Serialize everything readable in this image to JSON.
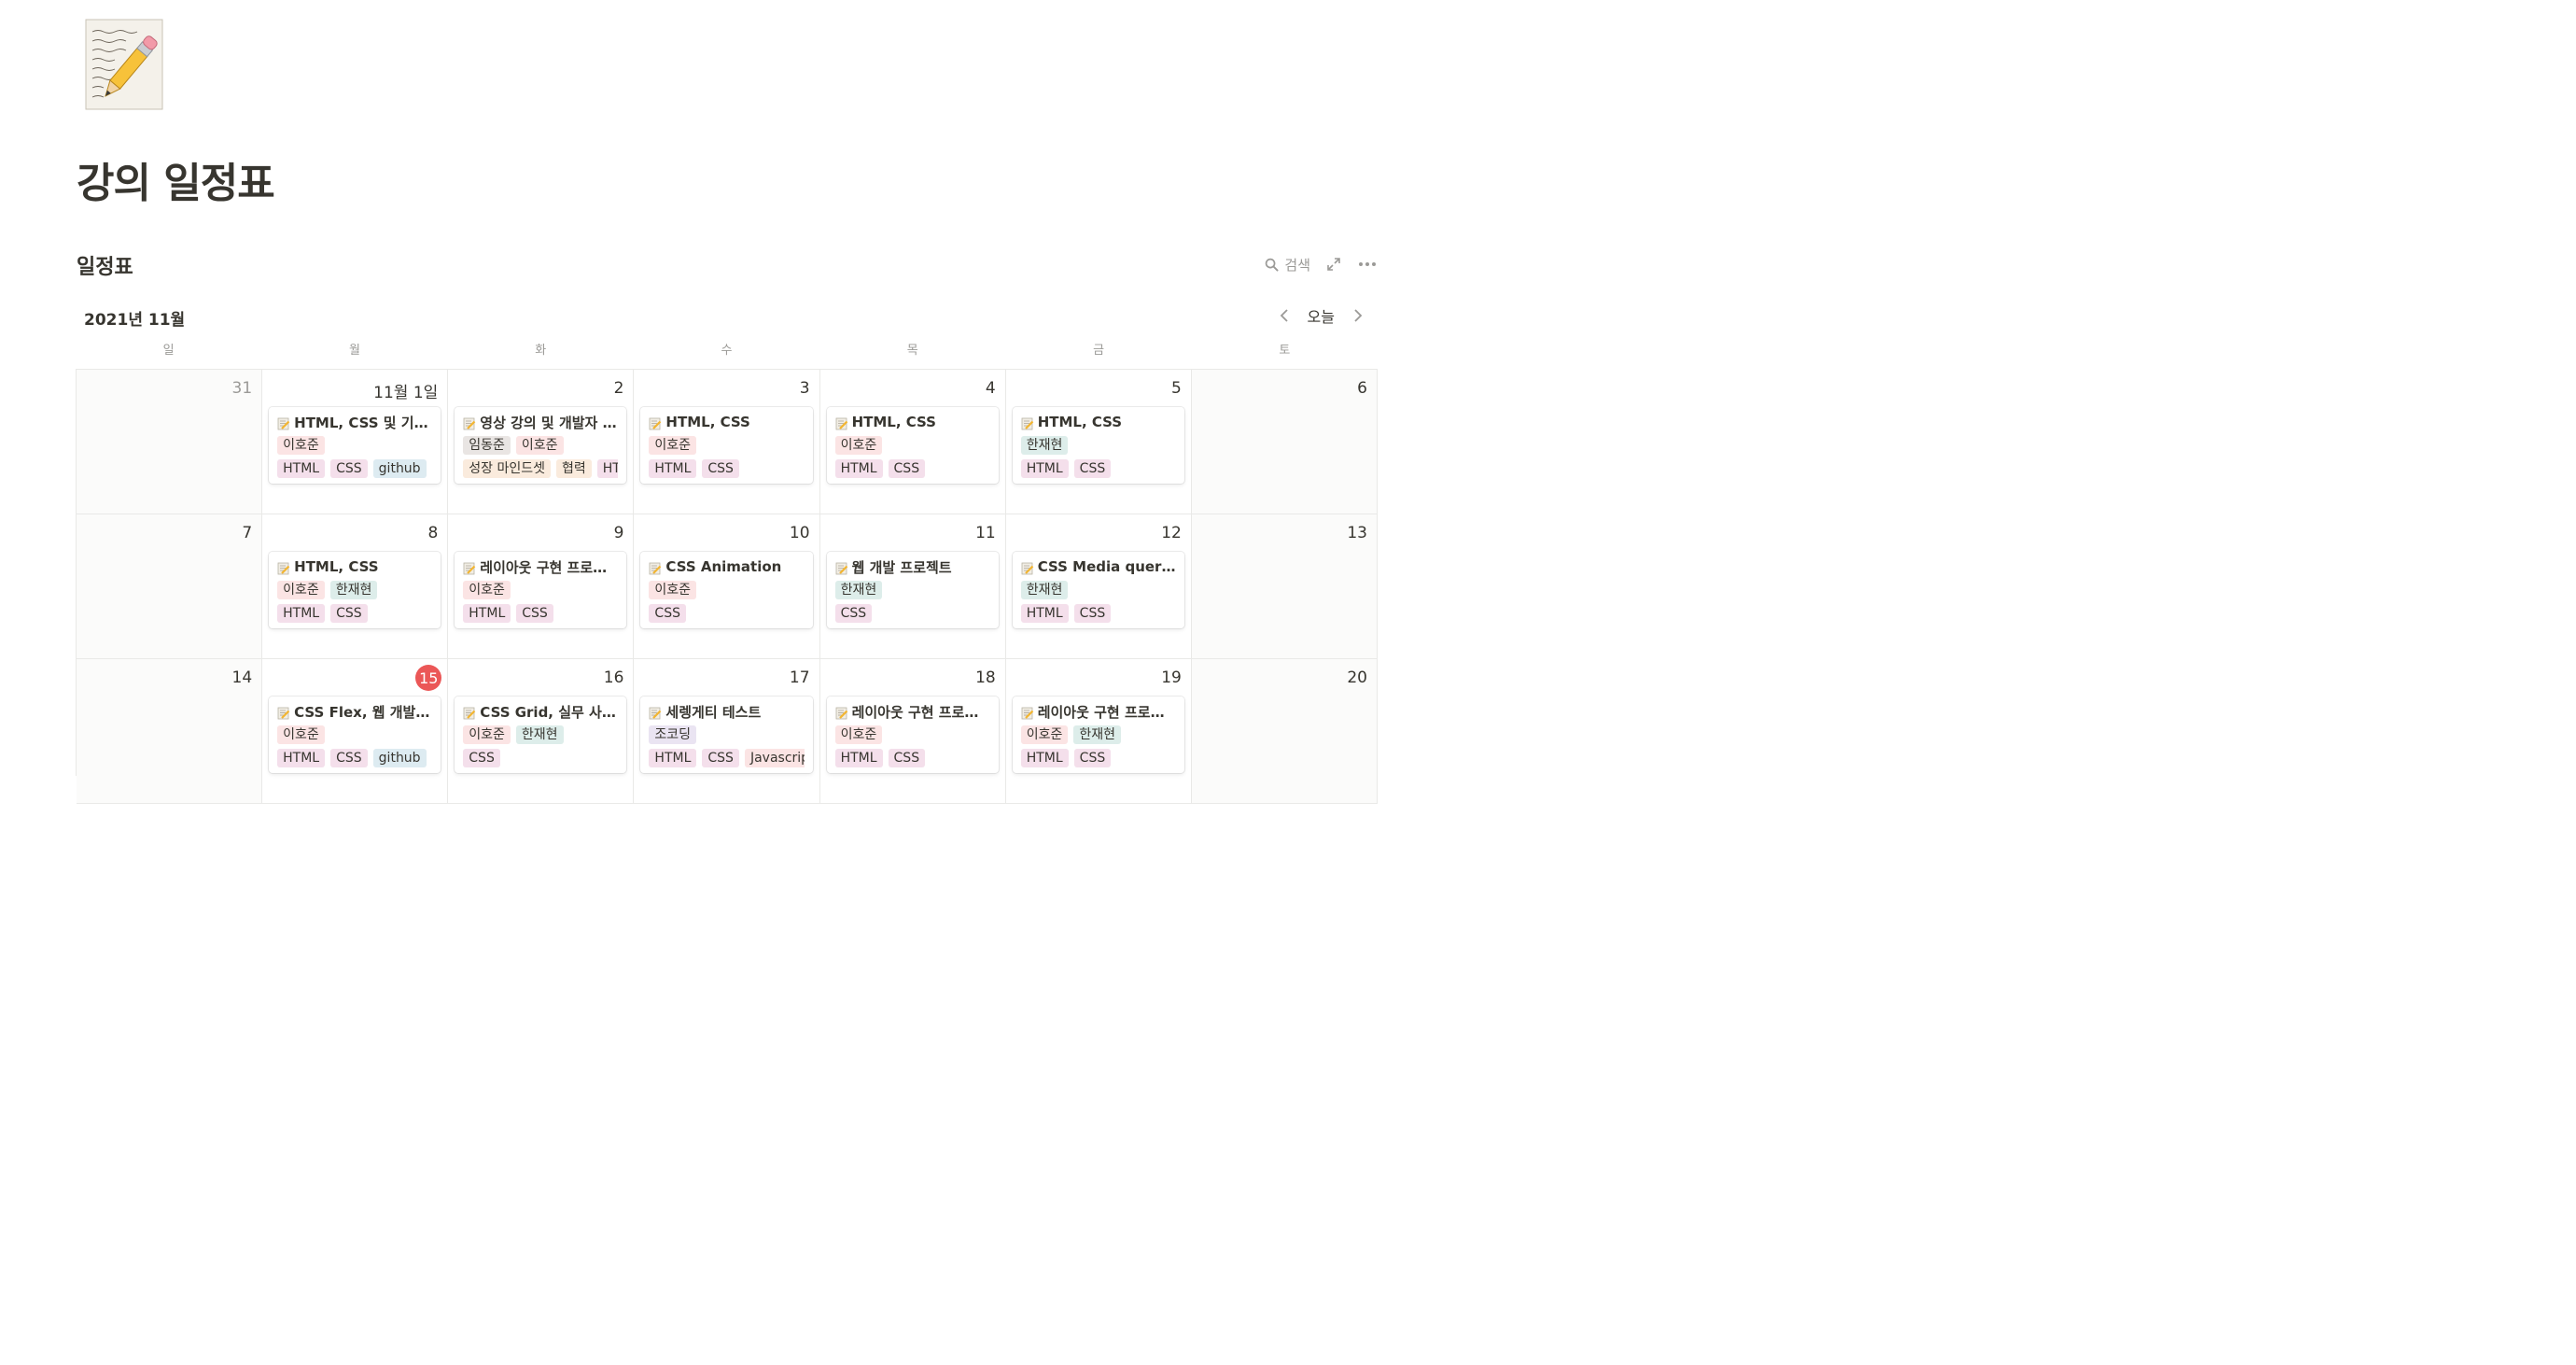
{
  "page": {
    "title": "강의 일정표"
  },
  "database": {
    "title": "일정표",
    "search_label": "검색",
    "icons": {
      "search": "search-icon",
      "expand": "expand-icon",
      "more": "more-icon"
    }
  },
  "calendar": {
    "month_label": "2021년 11월",
    "today_label": "오늘",
    "weekdays": [
      "일",
      "월",
      "화",
      "수",
      "목",
      "금",
      "토"
    ],
    "tag_colors": {
      "pink": "#f4dfeb",
      "red": "#fbe4e4",
      "orange": "#faebdd",
      "green": "#ddedea",
      "blue": "#ddebf1",
      "brown": "#e9e5e3",
      "purple": "#eae4f2"
    },
    "weeks": [
      [
        {
          "day": "31",
          "muted": true,
          "weekend": true
        },
        {
          "day": "11월 1일",
          "event": {
            "title": "HTML, CSS 및 기초 ...",
            "people": [
              {
                "name": "이호준",
                "color": "red"
              }
            ],
            "tags": [
              {
                "name": "HTML",
                "color": "pink"
              },
              {
                "name": "CSS",
                "color": "pink"
              },
              {
                "name": "github",
                "color": "blue"
              }
            ]
          }
        },
        {
          "day": "2",
          "event": {
            "title": "영상 강의 및 개발자 마...",
            "people": [
              {
                "name": "임동준",
                "color": "brown"
              },
              {
                "name": "이호준",
                "color": "red"
              }
            ],
            "tags": [
              {
                "name": "성장 마인드셋",
                "color": "orange"
              },
              {
                "name": "협력",
                "color": "orange"
              },
              {
                "name": "HTML",
                "color": "pink"
              }
            ]
          }
        },
        {
          "day": "3",
          "event": {
            "title": "HTML, CSS",
            "people": [
              {
                "name": "이호준",
                "color": "red"
              }
            ],
            "tags": [
              {
                "name": "HTML",
                "color": "pink"
              },
              {
                "name": "CSS",
                "color": "pink"
              }
            ]
          }
        },
        {
          "day": "4",
          "event": {
            "title": "HTML, CSS",
            "people": [
              {
                "name": "이호준",
                "color": "red"
              }
            ],
            "tags": [
              {
                "name": "HTML",
                "color": "pink"
              },
              {
                "name": "CSS",
                "color": "pink"
              }
            ]
          }
        },
        {
          "day": "5",
          "event": {
            "title": "HTML, CSS",
            "people": [
              {
                "name": "한재현",
                "color": "green"
              }
            ],
            "tags": [
              {
                "name": "HTML",
                "color": "pink"
              },
              {
                "name": "CSS",
                "color": "pink"
              }
            ]
          }
        },
        {
          "day": "6",
          "weekend": true
        }
      ],
      [
        {
          "day": "7",
          "weekend": true
        },
        {
          "day": "8",
          "event": {
            "title": "HTML, CSS",
            "people": [
              {
                "name": "이호준",
                "color": "red"
              },
              {
                "name": "한재현",
                "color": "green"
              }
            ],
            "tags": [
              {
                "name": "HTML",
                "color": "pink"
              },
              {
                "name": "CSS",
                "color": "pink"
              }
            ]
          }
        },
        {
          "day": "9",
          "event": {
            "title": "레이아웃 구현 프로젝트",
            "people": [
              {
                "name": "이호준",
                "color": "red"
              }
            ],
            "tags": [
              {
                "name": "HTML",
                "color": "pink"
              },
              {
                "name": "CSS",
                "color": "pink"
              }
            ]
          }
        },
        {
          "day": "10",
          "event": {
            "title": "CSS Animation",
            "people": [
              {
                "name": "이호준",
                "color": "red"
              }
            ],
            "tags": [
              {
                "name": "CSS",
                "color": "pink"
              }
            ]
          }
        },
        {
          "day": "11",
          "event": {
            "title": "웹 개발 프로젝트",
            "people": [
              {
                "name": "한재현",
                "color": "green"
              }
            ],
            "tags": [
              {
                "name": "CSS",
                "color": "pink"
              }
            ]
          }
        },
        {
          "day": "12",
          "event": {
            "title": "CSS Media query, ...",
            "people": [
              {
                "name": "한재현",
                "color": "green"
              }
            ],
            "tags": [
              {
                "name": "HTML",
                "color": "pink"
              },
              {
                "name": "CSS",
                "color": "pink"
              }
            ]
          }
        },
        {
          "day": "13",
          "weekend": true
        }
      ],
      [
        {
          "day": "14",
          "weekend": true
        },
        {
          "day": "15",
          "today": true,
          "event": {
            "title": "CSS Flex, 웹 개발 프...",
            "people": [
              {
                "name": "이호준",
                "color": "red"
              }
            ],
            "tags": [
              {
                "name": "HTML",
                "color": "pink"
              },
              {
                "name": "CSS",
                "color": "pink"
              },
              {
                "name": "github",
                "color": "blue"
              }
            ]
          }
        },
        {
          "day": "16",
          "event": {
            "title": "CSS Grid, 실무 사용 ...",
            "people": [
              {
                "name": "이호준",
                "color": "red"
              },
              {
                "name": "한재현",
                "color": "green"
              }
            ],
            "tags": [
              {
                "name": "CSS",
                "color": "pink"
              }
            ]
          }
        },
        {
          "day": "17",
          "event": {
            "title": "세렝게티 테스트",
            "people": [
              {
                "name": "조코딩",
                "color": "purple"
              }
            ],
            "tags": [
              {
                "name": "HTML",
                "color": "pink"
              },
              {
                "name": "CSS",
                "color": "pink"
              },
              {
                "name": "Javascript",
                "color": "red"
              }
            ]
          }
        },
        {
          "day": "18",
          "event": {
            "title": "레이아웃 구현 프로젝트",
            "people": [
              {
                "name": "이호준",
                "color": "red"
              }
            ],
            "tags": [
              {
                "name": "HTML",
                "color": "pink"
              },
              {
                "name": "CSS",
                "color": "pink"
              }
            ]
          }
        },
        {
          "day": "19",
          "event": {
            "title": "레이아웃 구현 프로젝트",
            "people": [
              {
                "name": "이호준",
                "color": "red"
              },
              {
                "name": "한재현",
                "color": "green"
              }
            ],
            "tags": [
              {
                "name": "HTML",
                "color": "pink"
              },
              {
                "name": "CSS",
                "color": "pink"
              }
            ]
          }
        },
        {
          "day": "20",
          "weekend": true
        }
      ]
    ]
  }
}
